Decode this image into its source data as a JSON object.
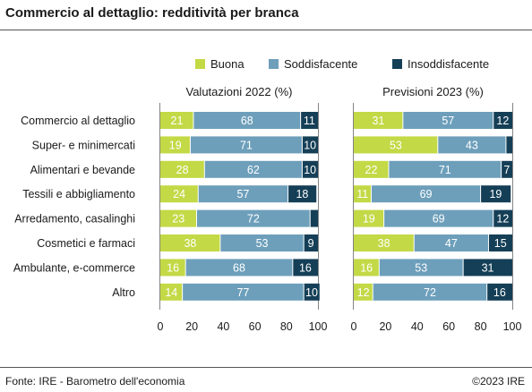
{
  "title": "Commercio al dettaglio: redditività per branca",
  "footer": {
    "source": "Fonte: IRE - Barometro dell'economia",
    "copyright": "©2023 IRE"
  },
  "colors": {
    "Buona": "#c3d946",
    "Soddisfacente": "#6d9fbb",
    "Insoddisfacente": "#153f57",
    "divider": "#ffffff",
    "label_light": "#ffffff",
    "label_dark": "#ffffff"
  },
  "chart_data": [
    {
      "type": "bar",
      "orientation": "horizontal",
      "stacked": true,
      "title": "Valutazioni 2022 (%)",
      "categories": [
        "Commercio al dettaglio",
        "Super- e minimercati",
        "Alimentari e bevande",
        "Tessili e abbigliamento",
        "Arredamento, casalinghi",
        "Cosmetici e farmaci",
        "Ambulante, e-commerce",
        "Altro"
      ],
      "series": [
        {
          "name": "Buona",
          "values": [
            21,
            19,
            28,
            24,
            23,
            38,
            16,
            14
          ]
        },
        {
          "name": "Soddisfacente",
          "values": [
            68,
            71,
            62,
            57,
            72,
            53,
            68,
            77
          ]
        },
        {
          "name": "Insoddisfacente",
          "values": [
            11,
            10,
            10,
            18,
            5,
            9,
            16,
            10
          ]
        }
      ],
      "hidden_labels": [
        [],
        [],
        [],
        [],
        [
          2
        ],
        [],
        [],
        []
      ],
      "xlim": [
        0,
        100
      ],
      "xticks": [
        0,
        20,
        40,
        60,
        80,
        100
      ],
      "legend": "top"
    },
    {
      "type": "bar",
      "orientation": "horizontal",
      "stacked": true,
      "title": "Previsioni 2023 (%)",
      "categories": [
        "Commercio al dettaglio",
        "Super- e minimercati",
        "Alimentari e bevande",
        "Tessili e abbigliamento",
        "Arredamento, casalinghi",
        "Cosmetici e farmaci",
        "Ambulante, e-commerce",
        "Altro"
      ],
      "series": [
        {
          "name": "Buona",
          "values": [
            31,
            53,
            22,
            11,
            19,
            38,
            16,
            12
          ]
        },
        {
          "name": "Soddisfacente",
          "values": [
            57,
            43,
            71,
            69,
            69,
            47,
            53,
            72
          ]
        },
        {
          "name": "Insoddisfacente",
          "values": [
            12,
            4,
            7,
            19,
            12,
            15,
            31,
            16
          ]
        }
      ],
      "hidden_labels": [
        [],
        [
          2
        ],
        [],
        [],
        [],
        [],
        [],
        []
      ],
      "xlim": [
        0,
        100
      ],
      "xticks": [
        0,
        20,
        40,
        60,
        80,
        100
      ],
      "legend": "top"
    }
  ]
}
